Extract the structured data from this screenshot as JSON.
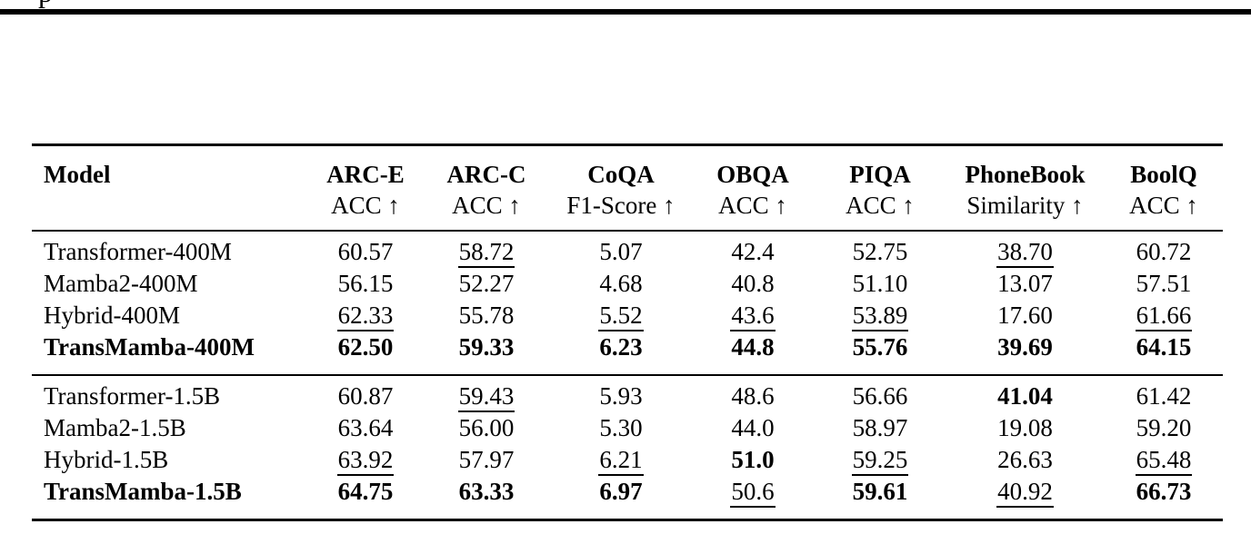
{
  "page": {
    "top_text_fragment": "p"
  },
  "table": {
    "columns": [
      {
        "name": "Model",
        "metric": ""
      },
      {
        "name": "ARC-E",
        "metric": "ACC ↑"
      },
      {
        "name": "ARC-C",
        "metric": "ACC ↑"
      },
      {
        "name": "CoQA",
        "metric": "F1-Score ↑"
      },
      {
        "name": "OBQA",
        "metric": "ACC ↑"
      },
      {
        "name": "PIQA",
        "metric": "ACC ↑"
      },
      {
        "name": "PhoneBook",
        "metric": "Similarity ↑"
      },
      {
        "name": "BoolQ",
        "metric": "ACC ↑"
      }
    ],
    "groups": [
      {
        "rows": [
          {
            "model": "Transformer-400M",
            "model_bold": false,
            "cells": [
              {
                "v": "60.57"
              },
              {
                "v": "58.72",
                "u": true
              },
              {
                "v": "5.07"
              },
              {
                "v": "42.4"
              },
              {
                "v": "52.75"
              },
              {
                "v": "38.70",
                "u": true
              },
              {
                "v": "60.72"
              }
            ]
          },
          {
            "model": "Mamba2-400M",
            "model_bold": false,
            "cells": [
              {
                "v": "56.15"
              },
              {
                "v": "52.27"
              },
              {
                "v": "4.68"
              },
              {
                "v": "40.8"
              },
              {
                "v": "51.10"
              },
              {
                "v": "13.07"
              },
              {
                "v": "57.51"
              }
            ]
          },
          {
            "model": "Hybrid-400M",
            "model_bold": false,
            "cells": [
              {
                "v": "62.33",
                "u": true
              },
              {
                "v": "55.78"
              },
              {
                "v": "5.52",
                "u": true
              },
              {
                "v": "43.6",
                "u": true
              },
              {
                "v": "53.89",
                "u": true
              },
              {
                "v": "17.60"
              },
              {
                "v": "61.66",
                "u": true
              }
            ]
          },
          {
            "model": "TransMamba-400M",
            "model_bold": true,
            "cells": [
              {
                "v": "62.50",
                "b": true
              },
              {
                "v": "59.33",
                "b": true
              },
              {
                "v": "6.23",
                "b": true
              },
              {
                "v": "44.8",
                "b": true
              },
              {
                "v": "55.76",
                "b": true
              },
              {
                "v": "39.69",
                "b": true
              },
              {
                "v": "64.15",
                "b": true
              }
            ]
          }
        ]
      },
      {
        "rows": [
          {
            "model": "Transformer-1.5B",
            "model_bold": false,
            "cells": [
              {
                "v": "60.87"
              },
              {
                "v": "59.43",
                "u": true
              },
              {
                "v": "5.93"
              },
              {
                "v": "48.6"
              },
              {
                "v": "56.66"
              },
              {
                "v": "41.04",
                "b": true
              },
              {
                "v": "61.42"
              }
            ]
          },
          {
            "model": "Mamba2-1.5B",
            "model_bold": false,
            "cells": [
              {
                "v": "63.64"
              },
              {
                "v": "56.00"
              },
              {
                "v": "5.30"
              },
              {
                "v": "44.0"
              },
              {
                "v": "58.97"
              },
              {
                "v": "19.08"
              },
              {
                "v": "59.20"
              }
            ]
          },
          {
            "model": "Hybrid-1.5B",
            "model_bold": false,
            "cells": [
              {
                "v": "63.92",
                "u": true
              },
              {
                "v": "57.97"
              },
              {
                "v": "6.21",
                "u": true
              },
              {
                "v": "51.0",
                "b": true
              },
              {
                "v": "59.25",
                "u": true
              },
              {
                "v": "26.63"
              },
              {
                "v": "65.48",
                "u": true
              }
            ]
          },
          {
            "model": "TransMamba-1.5B",
            "model_bold": true,
            "cells": [
              {
                "v": "64.75",
                "b": true
              },
              {
                "v": "63.33",
                "b": true
              },
              {
                "v": "6.97",
                "b": true
              },
              {
                "v": "50.6",
                "u": true
              },
              {
                "v": "59.61",
                "b": true
              },
              {
                "v": "40.92",
                "u": true
              },
              {
                "v": "66.73",
                "b": true
              }
            ]
          }
        ]
      }
    ]
  }
}
